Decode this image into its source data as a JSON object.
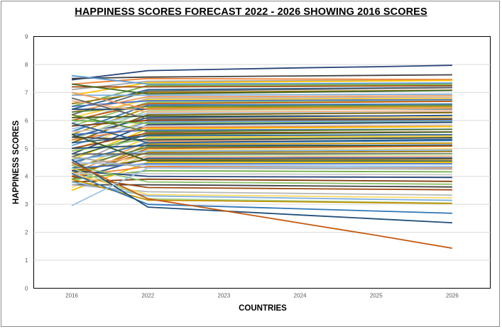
{
  "chart_data": {
    "type": "line",
    "title": "HAPPINESS SCORES FORECAST 2022 - 2026 SHOWING 2016 SCORES",
    "xlabel": "COUNTRIES",
    "ylabel": "HAPPINESS SCORES",
    "categories": [
      "2016",
      "2022",
      "2023",
      "2024",
      "2025",
      "2026"
    ],
    "ylim": [
      0,
      9
    ],
    "yticks": [
      "0",
      "1",
      "2",
      "3",
      "4",
      "5",
      "6",
      "7",
      "8",
      "9"
    ],
    "grid": "horizontal",
    "legend": "none",
    "series": [
      {
        "color": "#264478",
        "values": [
          7.45,
          7.78,
          7.83,
          7.88,
          7.92,
          7.97
        ]
      },
      {
        "color": "#404040",
        "values": [
          7.5,
          7.55,
          7.57,
          7.59,
          7.61,
          7.63
        ]
      },
      {
        "color": "#ED7D31",
        "values": [
          7.3,
          7.5,
          7.49,
          7.48,
          7.47,
          7.46
        ]
      },
      {
        "color": "#A5A5A5",
        "values": [
          7.1,
          7.4,
          7.41,
          7.42,
          7.42,
          7.43
        ]
      },
      {
        "color": "#FFC000",
        "values": [
          6.9,
          7.35,
          7.37,
          7.39,
          7.41,
          7.43
        ]
      },
      {
        "color": "#5B9BD5",
        "values": [
          7.6,
          7.3,
          7.31,
          7.32,
          7.33,
          7.34
        ]
      },
      {
        "color": "#70AD47",
        "values": [
          6.5,
          7.25,
          7.26,
          7.27,
          7.28,
          7.29
        ]
      },
      {
        "color": "#9E480E",
        "values": [
          7.2,
          7.2,
          7.21,
          7.22,
          7.23,
          7.24
        ]
      },
      {
        "color": "#255E91",
        "values": [
          6.4,
          7.1,
          7.12,
          7.14,
          7.16,
          7.18
        ]
      },
      {
        "color": "#636363",
        "values": [
          6.2,
          7.05,
          7.08,
          7.11,
          7.14,
          7.17
        ]
      },
      {
        "color": "#997300",
        "values": [
          6.6,
          7.0,
          7.02,
          7.04,
          7.06,
          7.08
        ]
      },
      {
        "color": "#43682B",
        "values": [
          7.3,
          6.95,
          6.98,
          7.01,
          7.04,
          7.07
        ]
      },
      {
        "color": "#7CAFDD",
        "values": [
          6.9,
          6.9,
          6.91,
          6.92,
          6.93,
          6.94
        ]
      },
      {
        "color": "#F1975A",
        "values": [
          6.3,
          6.85,
          6.85,
          6.86,
          6.87,
          6.88
        ]
      },
      {
        "color": "#B7B7B7",
        "values": [
          5.9,
          6.8,
          6.8,
          6.81,
          6.82,
          6.82
        ]
      },
      {
        "color": "#FFCD33",
        "values": [
          6.1,
          6.75,
          6.76,
          6.77,
          6.78,
          6.79
        ]
      },
      {
        "color": "#4472C4",
        "values": [
          6.5,
          6.7,
          6.71,
          6.72,
          6.73,
          6.74
        ]
      },
      {
        "color": "#8CC168",
        "values": [
          5.8,
          6.65,
          6.66,
          6.67,
          6.68,
          6.69
        ]
      },
      {
        "color": "#C55A11",
        "values": [
          6.0,
          6.6,
          6.62,
          6.64,
          6.66,
          6.68
        ]
      },
      {
        "color": "#2E75B6",
        "values": [
          5.6,
          6.55,
          6.56,
          6.57,
          6.58,
          6.59
        ]
      },
      {
        "color": "#548235",
        "values": [
          6.3,
          6.5,
          6.51,
          6.52,
          6.53,
          6.54
        ]
      },
      {
        "color": "#BF9000",
        "values": [
          5.5,
          6.45,
          6.46,
          6.47,
          6.48,
          6.49
        ]
      },
      {
        "color": "#1F4E79",
        "values": [
          6.4,
          6.4,
          6.4,
          6.41,
          6.41,
          6.41
        ]
      },
      {
        "color": "#A9D18E",
        "values": [
          5.3,
          6.35,
          6.37,
          6.39,
          6.41,
          6.43
        ]
      },
      {
        "color": "#F4B183",
        "values": [
          6.7,
          6.3,
          6.31,
          6.32,
          6.33,
          6.34
        ]
      },
      {
        "color": "#9DC3E6",
        "values": [
          5.7,
          6.25,
          6.26,
          6.27,
          6.28,
          6.29
        ]
      },
      {
        "color": "#7F6000",
        "values": [
          5.2,
          6.2,
          6.22,
          6.24,
          6.26,
          6.28
        ]
      },
      {
        "color": "#385723",
        "values": [
          6.1,
          6.15,
          6.15,
          6.16,
          6.16,
          6.17
        ]
      },
      {
        "color": "#2F5597",
        "values": [
          5.4,
          6.1,
          6.12,
          6.14,
          6.16,
          6.18
        ]
      },
      {
        "color": "#FFD966",
        "values": [
          4.9,
          6.05,
          6.07,
          6.09,
          6.11,
          6.13
        ]
      },
      {
        "color": "#843C0C",
        "values": [
          5.8,
          6.0,
          6.01,
          6.02,
          6.03,
          6.04
        ]
      },
      {
        "color": "#5B9BD5",
        "values": [
          5.1,
          5.95,
          5.96,
          5.97,
          5.98,
          5.99
        ]
      },
      {
        "color": "#70AD47",
        "values": [
          6.0,
          5.9,
          5.91,
          5.92,
          5.93,
          5.94
        ]
      },
      {
        "color": "#264478",
        "values": [
          4.8,
          5.85,
          5.87,
          5.89,
          5.91,
          5.93
        ]
      },
      {
        "color": "#C9C9C9",
        "values": [
          5.6,
          5.8,
          5.81,
          5.82,
          5.83,
          5.84
        ]
      },
      {
        "color": "#ED7D31",
        "values": [
          5.3,
          5.75,
          5.76,
          5.77,
          5.78,
          5.79
        ]
      },
      {
        "color": "#FFC000",
        "values": [
          4.6,
          5.7,
          5.72,
          5.74,
          5.76,
          5.78
        ]
      },
      {
        "color": "#4472C4",
        "values": [
          5.5,
          5.65,
          5.66,
          5.67,
          5.68,
          5.69
        ]
      },
      {
        "color": "#A5A5A5",
        "values": [
          4.4,
          5.6,
          5.62,
          5.64,
          5.66,
          5.68
        ]
      },
      {
        "color": "#9E480E",
        "values": [
          5.0,
          5.55,
          5.56,
          5.57,
          5.58,
          5.59
        ]
      },
      {
        "color": "#43682B",
        "values": [
          4.7,
          5.5,
          5.52,
          5.54,
          5.56,
          5.58
        ]
      },
      {
        "color": "#255E91",
        "values": [
          5.2,
          5.45,
          5.46,
          5.47,
          5.48,
          5.49
        ]
      },
      {
        "color": "#FFCD33",
        "values": [
          4.2,
          5.4,
          5.41,
          5.42,
          5.43,
          5.44
        ]
      },
      {
        "color": "#8CC168",
        "values": [
          4.9,
          5.35,
          5.36,
          5.37,
          5.38,
          5.39
        ]
      },
      {
        "color": "#404040",
        "values": [
          5.4,
          5.3,
          5.32,
          5.34,
          5.36,
          5.38
        ]
      },
      {
        "color": "#F1975A",
        "values": [
          4.1,
          5.25,
          5.26,
          5.27,
          5.28,
          5.29
        ]
      },
      {
        "color": "#2E75B6",
        "values": [
          4.5,
          5.2,
          5.22,
          5.24,
          5.26,
          5.28
        ]
      },
      {
        "color": "#BF9000",
        "values": [
          3.9,
          5.15,
          5.16,
          5.17,
          5.18,
          5.19
        ]
      },
      {
        "color": "#1F4E79",
        "values": [
          5.0,
          5.1,
          5.1,
          5.11,
          5.11,
          5.12
        ]
      },
      {
        "color": "#548235",
        "values": [
          4.3,
          5.05,
          5.06,
          5.07,
          5.08,
          5.09
        ]
      },
      {
        "color": "#C55A11",
        "values": [
          4.0,
          5.0,
          5.02,
          5.04,
          5.06,
          5.08
        ]
      },
      {
        "color": "#FFD966",
        "values": [
          3.6,
          4.95,
          4.96,
          4.97,
          4.98,
          4.99
        ]
      },
      {
        "color": "#7CAFDD",
        "values": [
          4.6,
          4.9,
          4.91,
          4.92,
          4.93,
          4.94
        ]
      },
      {
        "color": "#997300",
        "values": [
          4.1,
          4.85,
          4.86,
          4.87,
          4.88,
          4.89
        ]
      },
      {
        "color": "#636363",
        "values": [
          4.8,
          4.8,
          4.8,
          4.81,
          4.81,
          4.81
        ]
      },
      {
        "color": "#A9D18E",
        "values": [
          3.8,
          4.75,
          4.76,
          4.77,
          4.78,
          4.79
        ]
      },
      {
        "color": "#F4B183",
        "values": [
          4.4,
          4.7,
          4.7,
          4.71,
          4.71,
          4.72
        ]
      },
      {
        "color": "#2F5597",
        "values": [
          3.9,
          4.65,
          4.65,
          4.66,
          4.66,
          4.66
        ]
      },
      {
        "color": "#7F6000",
        "values": [
          4.2,
          4.6,
          4.6,
          4.61,
          4.61,
          4.62
        ]
      },
      {
        "color": "#385723",
        "values": [
          5.5,
          4.55,
          4.55,
          4.55,
          4.55,
          4.55
        ]
      },
      {
        "color": "#FFC000",
        "values": [
          3.5,
          4.5,
          4.5,
          4.5,
          4.5,
          4.5
        ]
      },
      {
        "color": "#4472C4",
        "values": [
          4.3,
          4.45,
          4.45,
          4.45,
          4.45,
          4.45
        ]
      },
      {
        "color": "#9DC3E6",
        "values": [
          4.5,
          4.4,
          4.39,
          4.38,
          4.37,
          4.36
        ]
      },
      {
        "color": "#ED7D31",
        "values": [
          4.0,
          4.35,
          4.34,
          4.33,
          4.32,
          4.31
        ]
      },
      {
        "color": "#A5A5A5",
        "values": [
          4.7,
          4.3,
          4.29,
          4.28,
          4.27,
          4.26
        ]
      },
      {
        "color": "#70AD47",
        "values": [
          3.9,
          4.2,
          4.19,
          4.18,
          4.17,
          4.16
        ]
      },
      {
        "color": "#C9C9C9",
        "values": [
          4.1,
          4.1,
          4.09,
          4.08,
          4.07,
          4.06
        ]
      },
      {
        "color": "#264478",
        "values": [
          4.2,
          4.0,
          3.99,
          3.98,
          3.97,
          3.96
        ]
      },
      {
        "color": "#843C0C",
        "values": [
          3.8,
          3.9,
          3.88,
          3.86,
          3.84,
          3.82
        ]
      },
      {
        "color": "#8CC168",
        "values": [
          4.4,
          3.8,
          3.78,
          3.76,
          3.74,
          3.72
        ]
      },
      {
        "color": "#404040",
        "values": [
          3.7,
          3.7,
          3.68,
          3.66,
          3.64,
          3.62
        ]
      },
      {
        "color": "#9E480E",
        "values": [
          4.0,
          3.6,
          3.58,
          3.56,
          3.54,
          3.52
        ]
      },
      {
        "color": "#B7B7B7",
        "values": [
          3.7,
          3.45,
          3.42,
          3.39,
          3.36,
          3.33
        ]
      },
      {
        "color": "#FFD966",
        "values": [
          4.1,
          3.35,
          3.32,
          3.29,
          3.26,
          3.23
        ]
      },
      {
        "color": "#7CAFDD",
        "values": [
          3.8,
          3.3,
          3.26,
          3.22,
          3.18,
          3.14
        ]
      },
      {
        "color": "#A9D18E",
        "values": [
          4.3,
          3.2,
          3.16,
          3.12,
          3.08,
          3.04
        ]
      },
      {
        "color": "#BF9000",
        "values": [
          3.9,
          3.15,
          3.12,
          3.09,
          3.06,
          3.03
        ]
      },
      {
        "color": "#2E75B6",
        "values": [
          4.1,
          3.0,
          2.92,
          2.84,
          2.76,
          2.68
        ]
      },
      {
        "color": "#1F4E79",
        "values": [
          4.6,
          2.9,
          2.76,
          2.62,
          2.48,
          2.34
        ]
      },
      {
        "color": "#C55A11",
        "values": [
          4.5,
          3.2,
          2.77,
          2.33,
          1.89,
          1.43
        ]
      },
      {
        "color": "#9DC3E6",
        "values": [
          2.95,
          4.3,
          4.31,
          4.32,
          4.33,
          4.34
        ]
      },
      {
        "color": "#255E91",
        "values": [
          5.9,
          5.2,
          5.23,
          5.26,
          5.29,
          5.32
        ]
      },
      {
        "color": "#548235",
        "values": [
          6.2,
          5.6,
          5.62,
          5.64,
          5.66,
          5.68
        ]
      },
      {
        "color": "#F1975A",
        "values": [
          7.0,
          6.4,
          6.41,
          6.42,
          6.43,
          6.44
        ]
      },
      {
        "color": "#636363",
        "values": [
          6.8,
          6.05,
          6.05,
          6.06,
          6.06,
          6.07
        ]
      }
    ]
  }
}
